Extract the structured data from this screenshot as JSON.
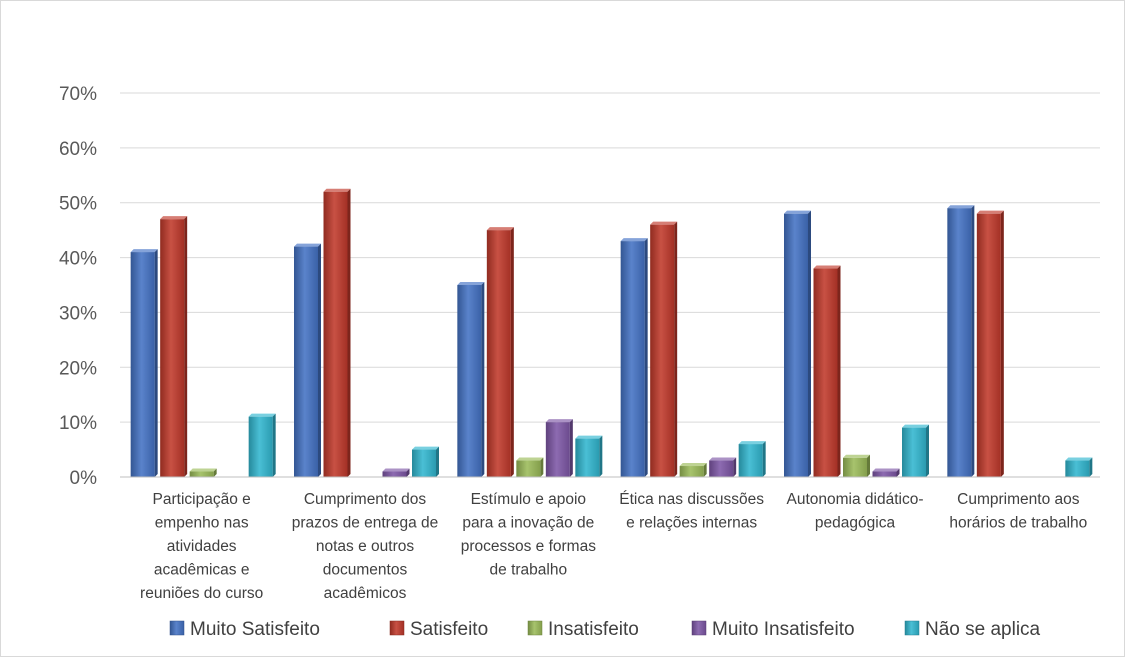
{
  "chart_data": {
    "type": "bar",
    "title": "",
    "xlabel": "",
    "ylabel": "",
    "ylim": [
      0,
      0.7
    ],
    "y_ticks": [
      "0%",
      "10%",
      "20%",
      "30%",
      "40%",
      "50%",
      "60%",
      "70%"
    ],
    "y_tick_values": [
      0,
      0.1,
      0.2,
      0.3,
      0.4,
      0.5,
      0.6,
      0.7
    ],
    "grid": true,
    "legend_position": "bottom",
    "categories": [
      [
        "Participação e",
        "empenho nas",
        "atividades",
        "acadêmicas e",
        "reuniões do curso"
      ],
      [
        "Cumprimento dos",
        "prazos de entrega de",
        "notas e outros",
        "documentos",
        "acadêmicos"
      ],
      [
        "Estímulo e apoio",
        "para a inovação de",
        "processos e formas",
        "de trabalho"
      ],
      [
        "Ética nas discussões",
        "e relações internas"
      ],
      [
        "Autonomia didático-",
        "pedagógica"
      ],
      [
        "Cumprimento aos",
        "horários de trabalho"
      ]
    ],
    "series": [
      {
        "name": "Muito Satisfeito",
        "color": "#4472c4",
        "values": [
          0.41,
          0.42,
          0.35,
          0.43,
          0.48,
          0.49
        ]
      },
      {
        "name": "Satisfeito",
        "color": "#c0392b",
        "values": [
          0.47,
          0.52,
          0.45,
          0.46,
          0.38,
          0.48
        ]
      },
      {
        "name": "Insatisfeito",
        "color": "#9bbb59",
        "values": [
          0.01,
          0,
          0.03,
          0.02,
          0.035,
          0
        ]
      },
      {
        "name": "Muito Insatisfeito",
        "color": "#7e57a6",
        "values": [
          0,
          0.01,
          0.1,
          0.03,
          0.01,
          0
        ]
      },
      {
        "name": "Não se aplica",
        "color": "#31b6cf",
        "values": [
          0.11,
          0.05,
          0.07,
          0.06,
          0.09,
          0.03
        ]
      }
    ]
  }
}
